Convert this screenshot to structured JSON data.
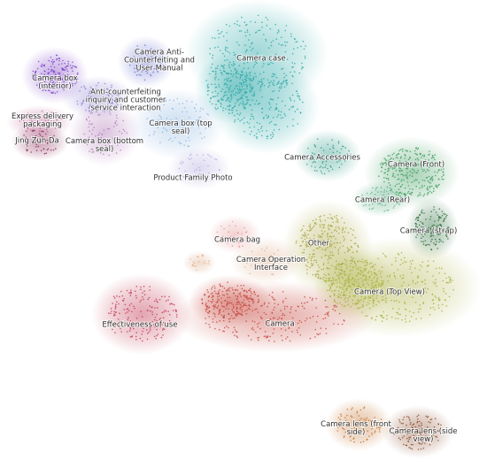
{
  "clusters": [
    {
      "label": [
        "Camera box",
        "(interior)"
      ],
      "color": "#7b3fc4"
    },
    {
      "label": [
        "Camera Anti-",
        "Counterfeiting and",
        "User Manual"
      ],
      "color": "#6a6fcf"
    },
    {
      "label": [
        "Anti-counterfeiting",
        "inquiry and customer",
        "service interaction"
      ],
      "color": "#8a7fd0"
    },
    {
      "label": [
        "Express delivery",
        "packaging"
      ],
      "color": "#c06a9a"
    },
    {
      "label": [
        "Jing Zun Da"
      ],
      "color": "#8a2a55"
    },
    {
      "label": [
        "Camera box (bottom",
        "seal)"
      ],
      "color": "#b07ab8"
    },
    {
      "label": [
        "Camera box (top",
        "seal)"
      ],
      "color": "#8fb6e0"
    },
    {
      "label": [
        "Product Family Photo"
      ],
      "color": "#b5aee0"
    },
    {
      "label": [
        "Camera case"
      ],
      "color": "#2aa6a6"
    },
    {
      "label": [
        "Camera Accessories"
      ],
      "color": "#2e9a86"
    },
    {
      "label": [
        "Camera (Front)"
      ],
      "color": "#3a9a5a"
    },
    {
      "label": [
        "Camera (Rear)"
      ],
      "color": "#5fb08a"
    },
    {
      "label": [
        "Camera (strap)"
      ],
      "color": "#2a6a3a"
    },
    {
      "label": [
        "Other"
      ],
      "color": "#a6a33a"
    },
    {
      "label": [
        "Camera (Top View)"
      ],
      "color": "#a8ad3a"
    },
    {
      "label": [
        "Camera bag"
      ],
      "color": "#e59a9a"
    },
    {
      "label": [
        "Camera Operation",
        "Interface"
      ],
      "color": "#e0b090"
    },
    {
      "label": [
        "Effectiveness of use"
      ],
      "color": "#c0364e"
    },
    {
      "label": [
        "Camera"
      ],
      "color": "#c4443a"
    },
    {
      "label": [
        "Camera lens (front",
        "side)"
      ],
      "color": "#c0702a"
    },
    {
      "label": [
        "Camera lens (side",
        "view)"
      ],
      "color": "#8a4a2a"
    }
  ]
}
